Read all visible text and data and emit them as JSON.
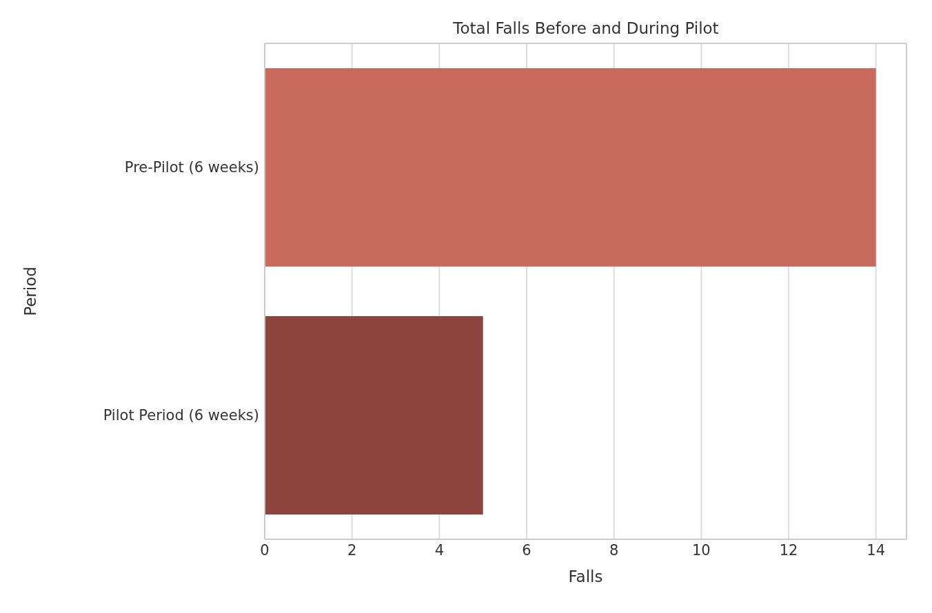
{
  "chart_data": {
    "type": "bar",
    "orientation": "horizontal",
    "title": "Total Falls Before and During Pilot",
    "xlabel": "Falls",
    "ylabel": "Period",
    "categories": [
      "Pre-Pilot (6 weeks)",
      "Pilot Period (6 weeks)"
    ],
    "values": [
      14,
      5
    ],
    "colors": [
      "#c86b5e",
      "#8b443e"
    ],
    "xlim": [
      0,
      14.7
    ],
    "xticks": [
      0,
      2,
      4,
      6,
      8,
      10,
      12,
      14
    ],
    "grid": "x"
  }
}
